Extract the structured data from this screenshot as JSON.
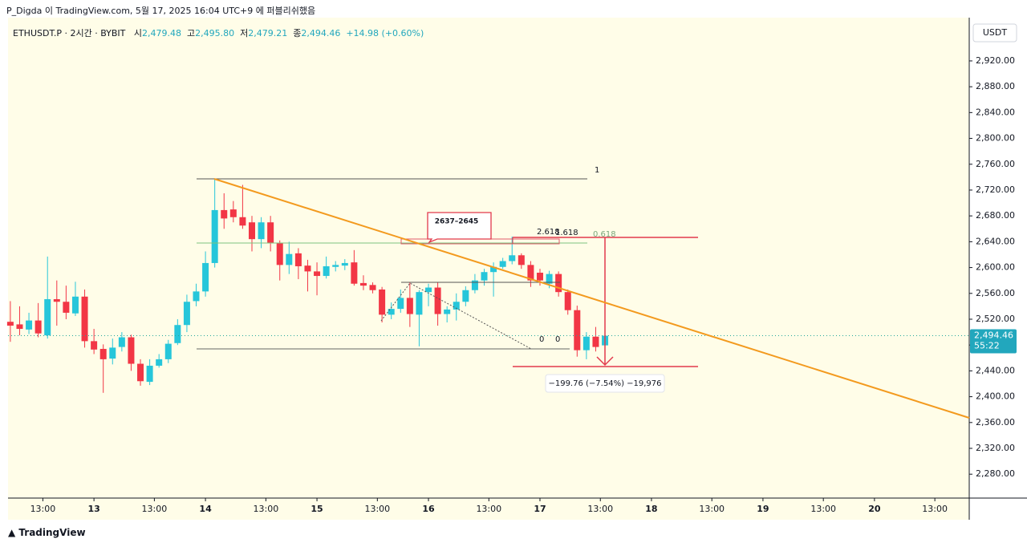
{
  "header": {
    "published": "P_Digda 이 TradingView.com, 5월 17, 2025 16:04 UTC+9 에 퍼블리쉬했음",
    "symbol": "ETHUSDT.P · 2시간 · BYBIT",
    "open_label": "시",
    "open": "2,479.48",
    "high_label": "고",
    "high": "2,495.80",
    "low_label": "저",
    "low": "2,479.21",
    "close_label": "종",
    "close": "2,494.46",
    "change": "+14.98 (+0.60%)"
  },
  "chart_data": {
    "type": "candlestick",
    "up_color": "#26c6da",
    "down_color": "#f23645",
    "x": [
      6,
      8,
      10,
      12,
      14,
      16,
      18,
      20,
      22,
      24,
      26,
      28,
      30,
      32,
      34,
      36,
      38,
      40,
      42,
      44,
      46,
      48,
      50,
      52,
      54,
      56,
      58,
      60,
      62,
      64,
      66,
      68,
      70,
      72,
      74,
      76,
      78,
      80,
      82,
      84,
      86,
      88,
      90,
      92,
      94,
      96,
      98,
      100,
      102,
      104,
      106,
      108,
      110,
      112,
      114,
      116,
      118,
      120,
      122,
      124,
      126,
      128,
      130,
      132,
      134
    ],
    "open": [
      2516,
      2512,
      2504,
      2518,
      2495,
      2551,
      2547,
      2529,
      2555,
      2486,
      2474,
      2459,
      2477,
      2492,
      2451,
      2423,
      2448,
      2458,
      2483,
      2511,
      2548,
      2563,
      2607,
      2689,
      2690,
      2678,
      2670,
      2644,
      2670,
      2638,
      2604,
      2622,
      2603,
      2594,
      2587,
      2601,
      2603,
      2608,
      2576,
      2573,
      2566,
      2527,
      2536,
      2553,
      2527,
      2562,
      2569,
      2528,
      2535,
      2547,
      2565,
      2580,
      2593,
      2601,
      2610,
      2619,
      2604,
      2592,
      2575,
      2590,
      2562,
      2534,
      2472,
      2493,
      2479.48
    ],
    "high": [
      2548,
      2540,
      2530,
      2545,
      2617,
      2580,
      2572,
      2578,
      2566,
      2505,
      2481,
      2490,
      2500,
      2496,
      2458,
      2458,
      2466,
      2488,
      2520,
      2558,
      2575,
      2625,
      2737,
      2715,
      2703,
      2728,
      2680,
      2678,
      2680,
      2642,
      2640,
      2630,
      2612,
      2608,
      2617,
      2610,
      2613,
      2627,
      2588,
      2577,
      2570,
      2546,
      2566,
      2577,
      2565,
      2575,
      2577,
      2540,
      2560,
      2571,
      2590,
      2598,
      2608,
      2615,
      2648,
      2622,
      2610,
      2598,
      2595,
      2594,
      2566,
      2541,
      2500,
      2508,
      2495.8
    ],
    "low": [
      2485,
      2495,
      2497,
      2492,
      2490,
      2510,
      2520,
      2525,
      2476,
      2466,
      2406,
      2450,
      2470,
      2440,
      2417,
      2418,
      2445,
      2452,
      2480,
      2500,
      2540,
      2555,
      2600,
      2660,
      2670,
      2660,
      2625,
      2630,
      2625,
      2580,
      2590,
      2582,
      2563,
      2557,
      2583,
      2594,
      2596,
      2572,
      2565,
      2560,
      2515,
      2520,
      2530,
      2508,
      2478,
      2540,
      2510,
      2515,
      2518,
      2540,
      2560,
      2572,
      2555,
      2598,
      2605,
      2598,
      2570,
      2572,
      2568,
      2555,
      2527,
      2462,
      2458,
      2470,
      2479.21
    ],
    "close": [
      2510,
      2505,
      2518,
      2498,
      2551,
      2547,
      2530,
      2555,
      2486,
      2473,
      2458,
      2476,
      2492,
      2451,
      2424,
      2448,
      2458,
      2482,
      2511,
      2547,
      2563,
      2607,
      2689,
      2676,
      2678,
      2665,
      2644,
      2670,
      2638,
      2604,
      2621,
      2602,
      2594,
      2587,
      2602,
      2604,
      2607,
      2575,
      2572,
      2565,
      2527,
      2536,
      2553,
      2528,
      2562,
      2569,
      2528,
      2535,
      2547,
      2565,
      2580,
      2593,
      2601,
      2610,
      2619,
      2604,
      2580,
      2580,
      2590,
      2562,
      2534,
      2472,
      2493,
      2477,
      2494.46
    ],
    "ylim": [
      2243,
      2987
    ],
    "yticks": [
      {
        "value": 2280,
        "label": "2,280.00"
      },
      {
        "value": 2320,
        "label": "2,320.00"
      },
      {
        "value": 2360,
        "label": "2,360.00"
      },
      {
        "value": 2400,
        "label": "2,400.00"
      },
      {
        "value": 2440,
        "label": "2,440.00"
      },
      {
        "value": 2480,
        "label": "2,480.00"
      },
      {
        "value": 2520,
        "label": "2,520.00"
      },
      {
        "value": 2560,
        "label": "2,560.00"
      },
      {
        "value": 2600,
        "label": "2,600.00"
      },
      {
        "value": 2640,
        "label": "2,640.00"
      },
      {
        "value": 2680,
        "label": "2,680.00"
      },
      {
        "value": 2720,
        "label": "2,720.00"
      },
      {
        "value": 2760,
        "label": "2,760.00"
      },
      {
        "value": 2800,
        "label": "2,800.00"
      },
      {
        "value": 2840,
        "label": "2,840.00"
      },
      {
        "value": 2880,
        "label": "2,880.00"
      },
      {
        "value": 2920,
        "label": "2,920.00"
      }
    ],
    "xlim": [
      5.5,
      212.4
    ],
    "xticks": [
      {
        "value": 13,
        "label": "13:00"
      },
      {
        "value": 24,
        "label": "13"
      },
      {
        "value": 37,
        "label": "13:00"
      },
      {
        "value": 48,
        "label": "14"
      },
      {
        "value": 61,
        "label": "13:00"
      },
      {
        "value": 72,
        "label": "15"
      },
      {
        "value": 85,
        "label": "13:00"
      },
      {
        "value": 96,
        "label": "16"
      },
      {
        "value": 109,
        "label": "13:00"
      },
      {
        "value": 120,
        "label": "17"
      },
      {
        "value": 133,
        "label": "13:00"
      },
      {
        "value": 144,
        "label": "18"
      },
      {
        "value": 157,
        "label": "13:00"
      },
      {
        "value": 168,
        "label": "19"
      },
      {
        "value": 181,
        "label": "13:00"
      },
      {
        "value": 192,
        "label": "20"
      },
      {
        "value": 205,
        "label": "13:00"
      }
    ],
    "unit": "USDT",
    "last_price_label": "2,494.46",
    "countdown": "55:22",
    "annotations": {
      "fib_top": "1",
      "fib_mid": "0.618",
      "ext_a": "2.618",
      "ext_b": "1.618",
      "fib_zero_a": "0",
      "fib_zero_b": "0",
      "zone": "2637–2645",
      "measure": "−199.76 (−7.54%) −19,976"
    }
  },
  "footer": "TradingView"
}
